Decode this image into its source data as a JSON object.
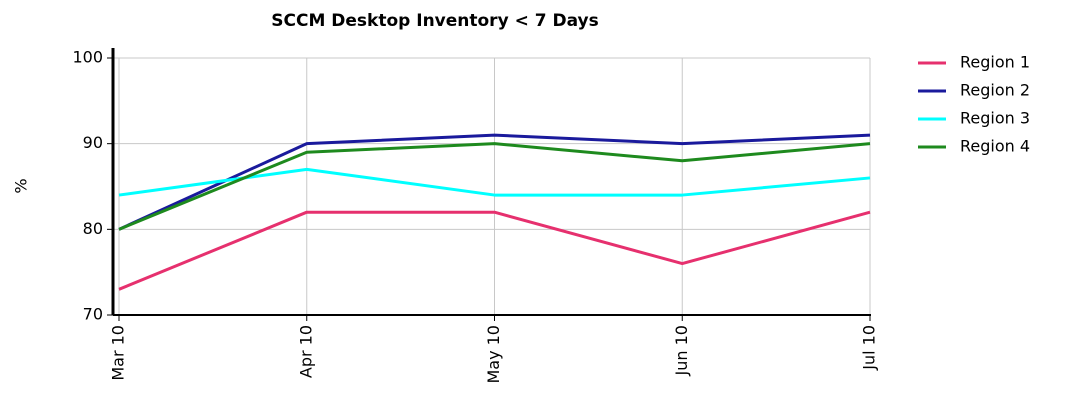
{
  "chart_data": {
    "type": "line",
    "title": "SCCM Desktop Inventory < 7 Days",
    "y_label": "%",
    "categories": [
      "Mar 10",
      "Apr 10",
      "May 10",
      "Jun 10",
      "Jul 10"
    ],
    "series": [
      {
        "name": "Region 1",
        "color": "#e6306e",
        "values": [
          73,
          82,
          82,
          76,
          82
        ]
      },
      {
        "name": "Region 2",
        "color": "#1a1a9c",
        "values": [
          80,
          90,
          91,
          90,
          91
        ]
      },
      {
        "name": "Region 3",
        "color": "#00ffff",
        "values": [
          84,
          87,
          84,
          84,
          86
        ]
      },
      {
        "name": "Region 4",
        "color": "#1e8a1e",
        "values": [
          80,
          89,
          90,
          88,
          90
        ]
      }
    ],
    "ylim": [
      70,
      100
    ],
    "yticks": [
      70,
      80,
      90,
      100
    ],
    "grid": true,
    "legend": "right"
  }
}
